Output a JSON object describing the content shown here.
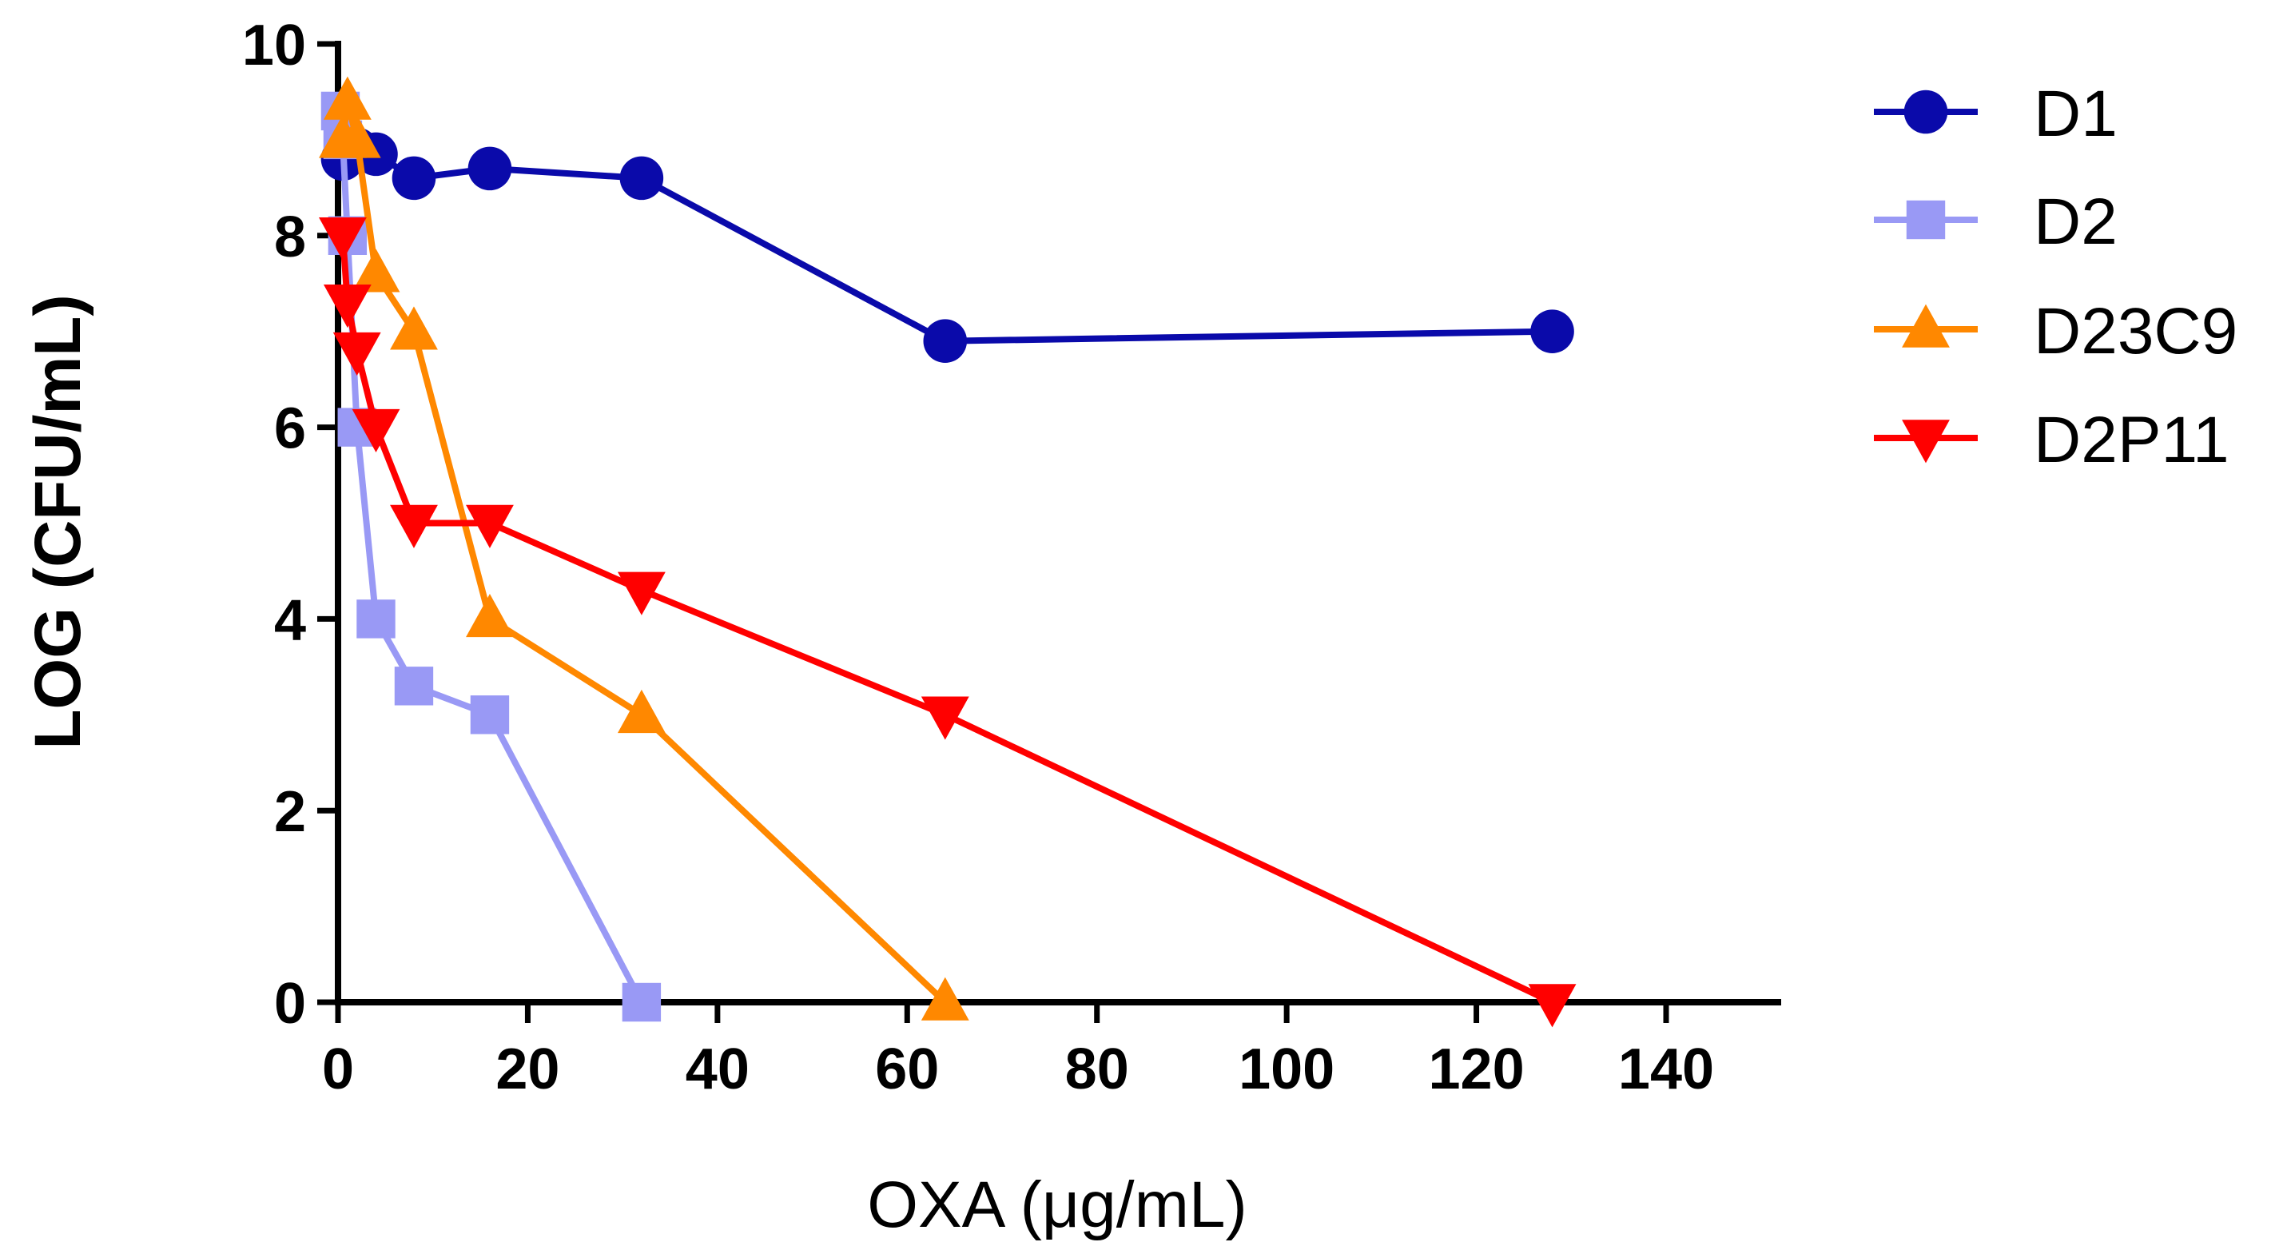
{
  "chart_data": {
    "type": "line",
    "title": "",
    "xlabel": "OXA (μg/mL)",
    "ylabel": "LOG (CFU/mL)",
    "xlim": [
      0,
      150
    ],
    "ylim": [
      0,
      10
    ],
    "xticks": [
      0,
      20,
      40,
      60,
      80,
      100,
      120,
      140
    ],
    "yticks": [
      0,
      2,
      4,
      6,
      8,
      10
    ],
    "grid": false,
    "legend_position": "right",
    "series": [
      {
        "name": "D1",
        "color": "#0a0aaa",
        "marker": "circle",
        "x": [
          0.5,
          1,
          2,
          4,
          8,
          16,
          32,
          64,
          128
        ],
        "y": [
          8.8,
          8.9,
          8.9,
          8.85,
          8.6,
          8.7,
          8.6,
          6.9,
          7.0
        ]
      },
      {
        "name": "D2",
        "color": "#9999f5",
        "marker": "square",
        "x": [
          0.25,
          0.5,
          1,
          2,
          4,
          8,
          16,
          32
        ],
        "y": [
          9.3,
          9.0,
          8.0,
          6.0,
          4.0,
          3.3,
          3.0,
          0.0
        ]
      },
      {
        "name": "D23C9",
        "color": "#ff8800",
        "marker": "triangle-up",
        "x": [
          0.5,
          1,
          2,
          4,
          8,
          16,
          32,
          64
        ],
        "y": [
          9.0,
          9.4,
          9.0,
          7.6,
          7.0,
          4.0,
          3.0,
          0.0
        ]
      },
      {
        "name": "D2P11",
        "color": "#ff0000",
        "marker": "triangle-down",
        "x": [
          0.5,
          1,
          2,
          4,
          8,
          16,
          32,
          64,
          128
        ],
        "y": [
          8.0,
          7.3,
          6.8,
          6.0,
          5.0,
          5.0,
          4.3,
          3.0,
          0.0
        ]
      }
    ]
  }
}
